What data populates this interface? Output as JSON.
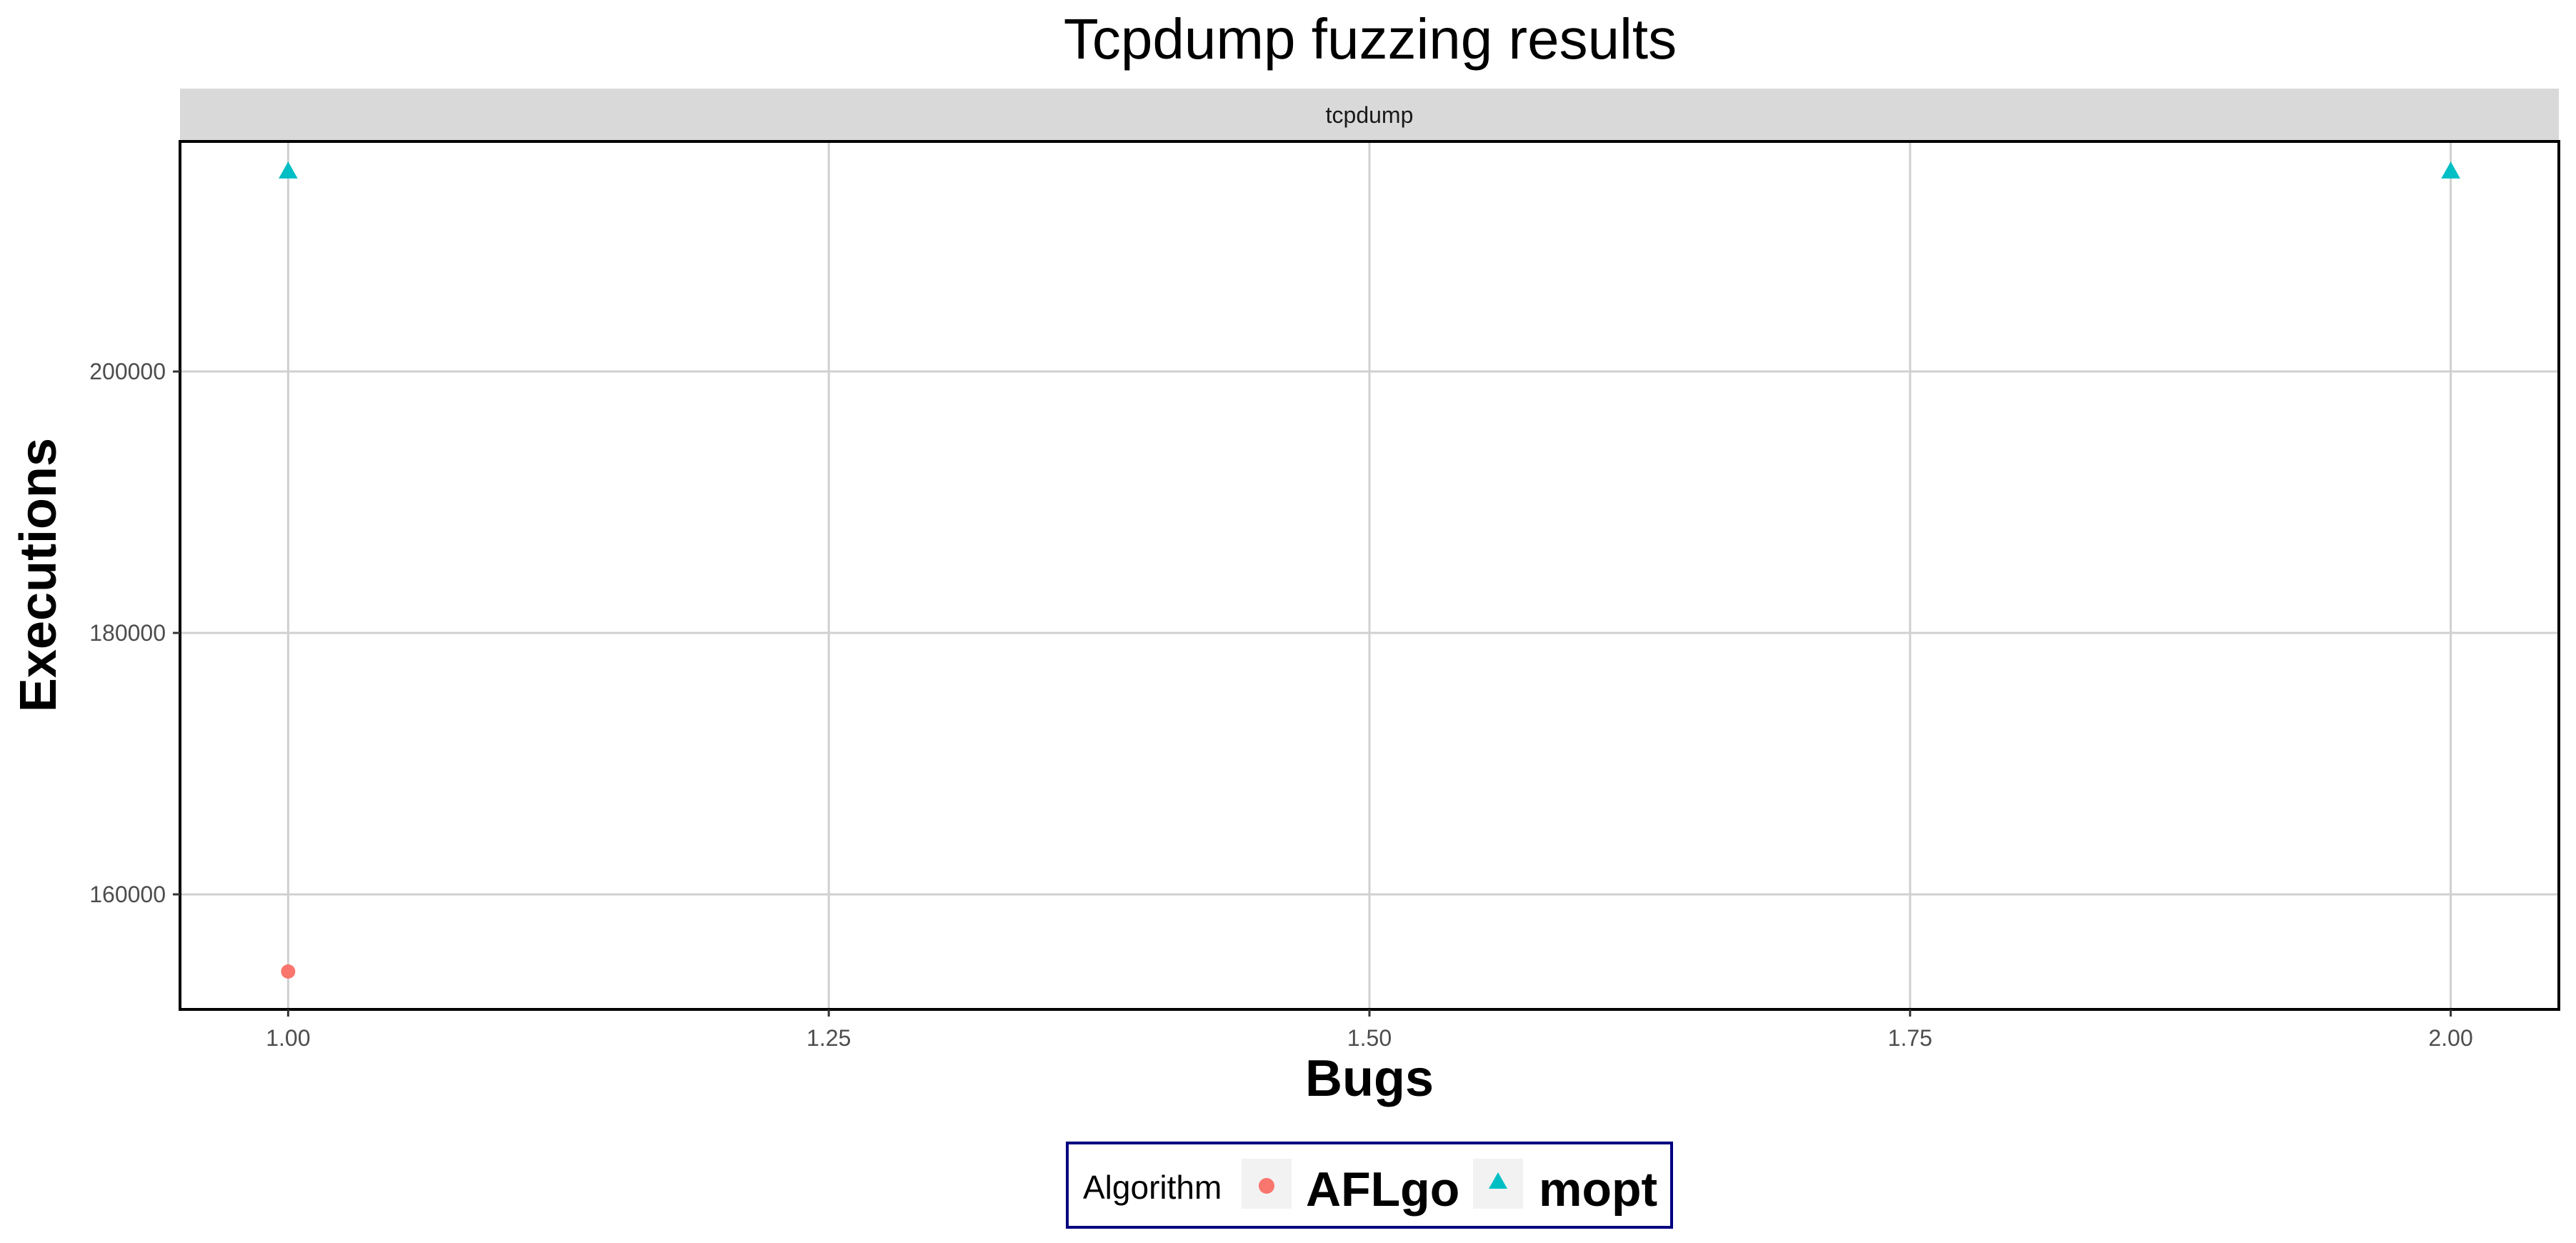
{
  "chart_data": {
    "type": "scatter",
    "title": "Tcpdump fuzzing results",
    "facet_label": "tcpdump",
    "xlabel": "Bugs",
    "ylabel": "Executions",
    "xlim": [
      0.95,
      2.05
    ],
    "ylim": [
      151200,
      217600
    ],
    "x_ticks": [
      1.0,
      1.25,
      1.5,
      1.75,
      2.0
    ],
    "x_tick_labels": [
      "1.00",
      "1.25",
      "1.50",
      "1.75",
      "2.00"
    ],
    "y_ticks": [
      160000,
      180000,
      200000
    ],
    "y_tick_labels": [
      "160000",
      "180000",
      "200000"
    ],
    "grid": true,
    "legend": {
      "title": "Algorithm",
      "placement": "bottom"
    },
    "series": [
      {
        "name": "AFLgo",
        "marker": "circle",
        "color": "#F8766D",
        "points": [
          {
            "x": 1.0,
            "y": 154100
          }
        ]
      },
      {
        "name": "mopt",
        "marker": "triangle",
        "color": "#00BFC4",
        "points": [
          {
            "x": 1.0,
            "y": 215300
          },
          {
            "x": 2.0,
            "y": 215300
          }
        ]
      }
    ]
  }
}
